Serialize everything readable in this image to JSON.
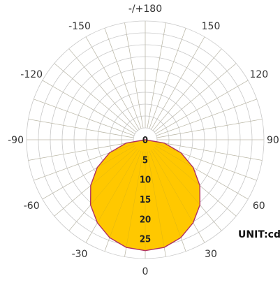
{
  "chart_data": {
    "type": "polar",
    "unit_label": "UNIT:cd",
    "radial_max": 30,
    "radial_ticks": [
      0,
      5,
      10,
      15,
      20,
      25
    ],
    "radial_tick_labels": [
      "0",
      "5",
      "10",
      "15",
      "20",
      "25"
    ],
    "angle_labels": [
      {
        "angle": 0,
        "text": "0"
      },
      {
        "angle": 30,
        "text": "30"
      },
      {
        "angle": 60,
        "text": "60"
      },
      {
        "angle": 90,
        "text": "90"
      },
      {
        "angle": 120,
        "text": "120"
      },
      {
        "angle": 150,
        "text": "150"
      },
      {
        "angle": 180,
        "text": "-/+180"
      },
      {
        "angle": -150,
        "text": "-150"
      },
      {
        "angle": -120,
        "text": "-120"
      },
      {
        "angle": -90,
        "text": "-90"
      },
      {
        "angle": -60,
        "text": "-60"
      },
      {
        "angle": -30,
        "text": "-30"
      }
    ],
    "series": [
      {
        "color": "#ffc800",
        "line_color": "#b03060",
        "values": [
          {
            "angle": 0,
            "r": 28
          },
          {
            "angle": 10,
            "r": 27.6
          },
          {
            "angle": 20,
            "r": 26.3
          },
          {
            "angle": 30,
            "r": 24.2
          },
          {
            "angle": 40,
            "r": 21.5
          },
          {
            "angle": 50,
            "r": 18.0
          },
          {
            "angle": 60,
            "r": 14.0
          },
          {
            "angle": 70,
            "r": 9.6
          },
          {
            "angle": 80,
            "r": 4.9
          },
          {
            "angle": 90,
            "r": 0
          }
        ],
        "symmetric": true
      }
    ]
  }
}
